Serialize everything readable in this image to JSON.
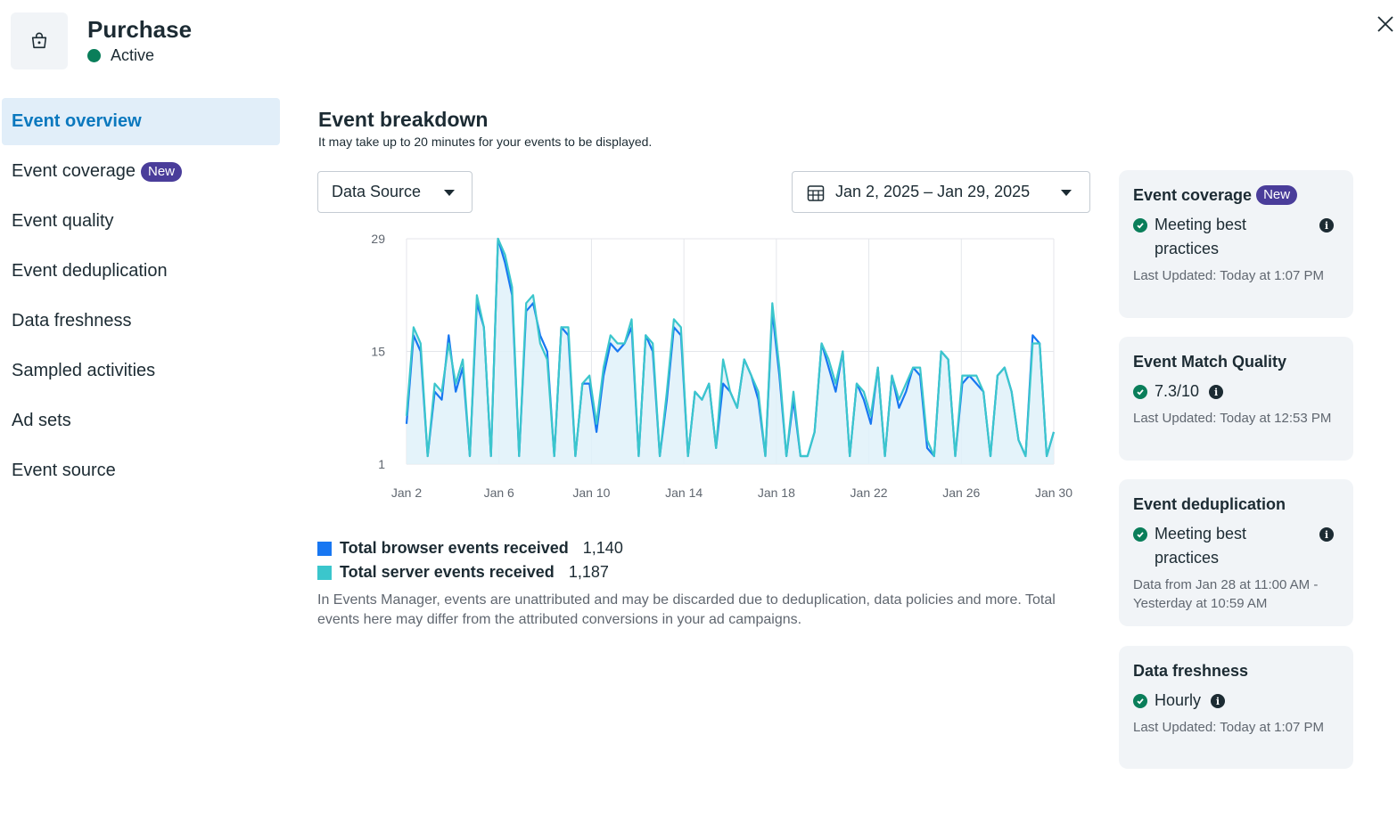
{
  "header": {
    "icon": "shopping-bag-icon",
    "title": "Purchase",
    "status": "Active",
    "status_color": "#0a7e5a",
    "close_icon": "close-icon"
  },
  "sidebar": {
    "items": [
      {
        "label": "Event overview",
        "active": true
      },
      {
        "label": "Event coverage",
        "badge": "New"
      },
      {
        "label": "Event quality"
      },
      {
        "label": "Event deduplication"
      },
      {
        "label": "Data freshness"
      },
      {
        "label": "Sampled activities"
      },
      {
        "label": "Ad sets"
      },
      {
        "label": "Event source"
      }
    ]
  },
  "colors": {
    "accent": "#0a78be",
    "badge": "#4a3d9a",
    "success": "#0a7e5a",
    "browser_series": "#1877f2",
    "server_series": "#3bc6cc"
  },
  "main": {
    "title": "Event breakdown",
    "subtitle": "It may take up to 20 minutes for your events to be displayed.",
    "data_source_label": "Data Source",
    "date_range_label": "Jan 2, 2025 – Jan 29, 2025",
    "calendar_icon": "calendar-icon",
    "legend": [
      {
        "label": "Total browser events received",
        "value": "1,140"
      },
      {
        "label": "Total server events received",
        "value": "1,187"
      }
    ],
    "disclaimer": "In Events Manager, events are unattributed and may be discarded due to deduplication, data policies and more. Total events here may differ from the attributed conversions in your ad campaigns."
  },
  "cards": [
    {
      "title": "Event coverage",
      "badge": "New",
      "status": "Meeting best practices",
      "has_info": true,
      "meta": "Last Updated: Today at 1:07 PM"
    },
    {
      "title": "Event Match Quality",
      "status": "7.3/10",
      "has_info": true,
      "meta": "Last Updated: Today at 12:53 PM"
    },
    {
      "title": "Event deduplication",
      "status": "Meeting best practices",
      "has_info": true,
      "meta": "Data from Jan 28 at 11:00 AM - Yesterday at 10:59 AM"
    },
    {
      "title": "Data freshness",
      "status": "Hourly",
      "has_info": true,
      "meta": "Last Updated: Today at 1:07 PM"
    }
  ],
  "chart_data": {
    "type": "line",
    "x_ticks": [
      "Jan 2",
      "Jan 6",
      "Jan 10",
      "Jan 14",
      "Jan 18",
      "Jan 22",
      "Jan 26",
      "Jan 30"
    ],
    "y_ticks": [
      1,
      15,
      29
    ],
    "ylim": [
      1,
      29
    ],
    "xlim_days": [
      2,
      30
    ],
    "grid": true,
    "series": [
      {
        "name": "Total browser events received",
        "color": "#1877f2",
        "values": [
          6,
          17,
          15,
          2,
          10,
          9,
          17,
          10,
          13,
          2,
          21,
          18,
          2,
          29,
          26,
          22,
          2,
          20,
          21,
          17,
          15,
          2,
          18,
          17,
          2,
          11,
          11,
          5,
          12,
          16,
          15,
          16,
          18,
          2,
          17,
          15,
          2,
          9,
          18,
          17,
          2,
          10,
          9,
          11,
          3,
          11,
          10,
          8,
          14,
          12,
          9,
          2,
          20,
          12,
          2,
          9,
          2,
          2,
          5,
          16,
          13,
          10,
          15,
          2,
          11,
          9,
          6,
          13,
          2,
          12,
          8,
          10,
          13,
          12,
          3,
          2,
          15,
          14,
          2,
          11,
          12,
          11,
          10,
          2,
          12,
          13,
          10,
          4,
          2,
          17,
          16,
          2,
          5
        ]
      },
      {
        "name": "Total server events received",
        "color": "#3bc6cc",
        "values": [
          7,
          18,
          16,
          2,
          11,
          10,
          16,
          11,
          14,
          2,
          22,
          18,
          2,
          29,
          27,
          23,
          2,
          21,
          22,
          16,
          14,
          2,
          18,
          18,
          2,
          11,
          12,
          6,
          13,
          17,
          16,
          16,
          19,
          2,
          17,
          16,
          2,
          10,
          19,
          18,
          2,
          10,
          9,
          11,
          3,
          14,
          10,
          8,
          14,
          12,
          10,
          2,
          21,
          13,
          2,
          10,
          2,
          2,
          5,
          16,
          14,
          11,
          15,
          2,
          11,
          10,
          7,
          13,
          2,
          12,
          9,
          11,
          13,
          13,
          4,
          2,
          15,
          14,
          2,
          12,
          12,
          12,
          10,
          2,
          12,
          13,
          10,
          4,
          2,
          16,
          16,
          2,
          5
        ]
      }
    ]
  }
}
